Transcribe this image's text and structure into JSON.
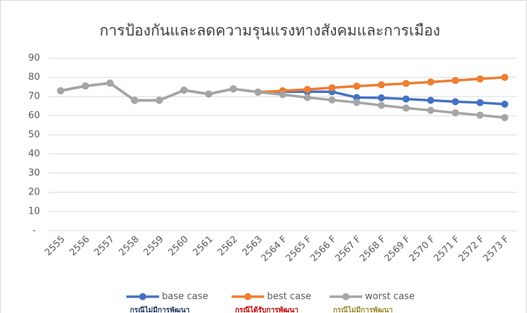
{
  "chart_data": {
    "type": "line",
    "title": "การป้องกันและลดความรุนแรงทางสังคมและการเมือง",
    "categories": [
      "2555",
      "2556",
      "2557",
      "2558",
      "2559",
      "2560",
      "2561",
      "2562",
      "2563",
      "2564 F",
      "2565 F",
      "2566 F",
      "2567 F",
      "2568 F",
      "2569 F",
      "2570 F",
      "2571 F",
      "2572 F",
      "2573 F"
    ],
    "series": [
      {
        "name": "base case",
        "subtitle": "กรณีไม่มีการพัฒนา",
        "color": "#4472c4",
        "subtitle_color": "#1f3864",
        "values": [
          73,
          75.5,
          77,
          68,
          68,
          73.3,
          71.3,
          74,
          72.3,
          72.5,
          72.5,
          72.5,
          69.5,
          69.3,
          68.7,
          68,
          67.3,
          66.8,
          66
        ]
      },
      {
        "name": "best case",
        "subtitle": "กรณีได้รับการพัฒนา",
        "color": "#ed7d31",
        "subtitle_color": "#c00000",
        "values": [
          73,
          75.5,
          77,
          68,
          68,
          73.3,
          71.3,
          74,
          72.3,
          73,
          73.7,
          74.6,
          75.4,
          76.1,
          76.8,
          77.6,
          78.4,
          79.2,
          80
        ]
      },
      {
        "name": "worst case",
        "subtitle": "กรณีไม่มีการพัฒนา",
        "color": "#a5a5a5",
        "subtitle_color": "#9c8b2f",
        "values": [
          73,
          75.5,
          77,
          68,
          68,
          73.3,
          71.3,
          74,
          72.3,
          71,
          69.5,
          68.2,
          66.9,
          65.4,
          64,
          62.8,
          61.5,
          60.3,
          59
        ]
      }
    ],
    "ylim": [
      0,
      90
    ],
    "yticks": [
      {
        "value": 0,
        "label": "-"
      },
      10,
      20,
      30,
      40,
      50,
      60,
      70,
      80,
      90
    ],
    "grid": true,
    "legend": "bottom"
  }
}
